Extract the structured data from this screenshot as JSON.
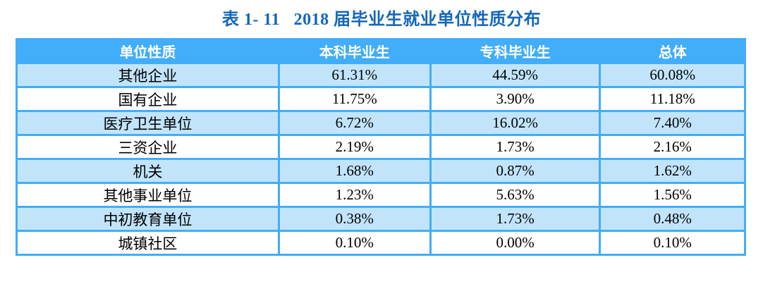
{
  "page": {
    "title": "表 1- 11   2018 届毕业生就业单位性质分布"
  },
  "colors": {
    "title_text": "#1467b8",
    "header_bg": "#42adf9",
    "header_text": "#ffffff",
    "border": "#42adf9",
    "row_alt_bg": "#c2e4fb",
    "body_text": "#000000"
  },
  "chart_data": {
    "type": "table",
    "title": "表 1- 11   2018 届毕业生就业单位性质分布",
    "columns": [
      "单位性质",
      "本科毕业生",
      "专科毕业生",
      "总体"
    ],
    "rows": [
      [
        "其他企业",
        "61.31%",
        "44.59%",
        "60.08%"
      ],
      [
        "国有企业",
        "11.75%",
        "3.90%",
        "11.18%"
      ],
      [
        "医疗卫生单位",
        "6.72%",
        "16.02%",
        "7.40%"
      ],
      [
        "三资企业",
        "2.19%",
        "1.73%",
        "2.16%"
      ],
      [
        "机关",
        "1.68%",
        "0.87%",
        "1.62%"
      ],
      [
        "其他事业单位",
        "1.23%",
        "5.63%",
        "1.56%"
      ],
      [
        "中初教育单位",
        "0.38%",
        "1.73%",
        "0.48%"
      ],
      [
        "城镇社区",
        "0.10%",
        "0.00%",
        "0.10%"
      ]
    ]
  }
}
